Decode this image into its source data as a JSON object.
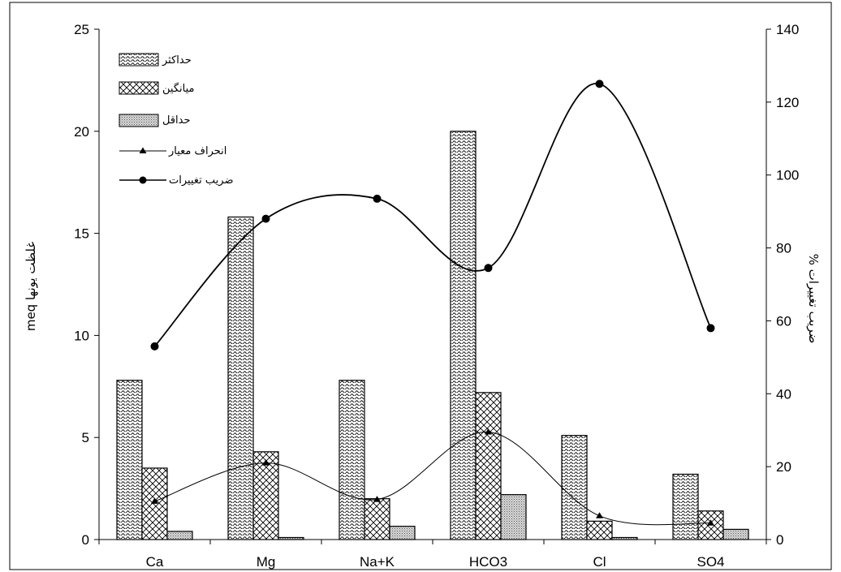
{
  "chart_data": {
    "type": "bar",
    "categories": [
      "Ca",
      "Mg",
      "Na+K",
      "HCO3",
      "Cl",
      "SO4"
    ],
    "series": [
      {
        "name": "حداکثر",
        "type": "bar",
        "axis": "left",
        "values": [
          7.8,
          15.8,
          7.8,
          20.0,
          5.1,
          3.2
        ]
      },
      {
        "name": "میانگین",
        "type": "bar",
        "axis": "left",
        "values": [
          3.5,
          4.3,
          2.0,
          7.2,
          0.9,
          1.4
        ]
      },
      {
        "name": "حداقل",
        "type": "bar",
        "axis": "left",
        "values": [
          0.4,
          0.1,
          0.65,
          2.2,
          0.1,
          0.5
        ]
      },
      {
        "name": "انحراف معیار",
        "type": "line",
        "axis": "right",
        "marker": "triangle",
        "values": [
          10.5,
          21,
          11,
          29.5,
          6.5,
          4.5
        ]
      },
      {
        "name": "ضریب تغییرات",
        "type": "line",
        "axis": "right",
        "marker": "circle",
        "values": [
          53,
          88,
          93.5,
          74.5,
          125,
          58
        ]
      }
    ],
    "y_left": {
      "label": "غلظت یونها meq",
      "min": 0,
      "max": 25,
      "ticks": [
        0,
        5,
        10,
        15,
        20,
        25
      ]
    },
    "y_right": {
      "label": "ضریب تغییرات %",
      "min": 0,
      "max": 140,
      "ticks": [
        0,
        20,
        40,
        60,
        80,
        100,
        120,
        140
      ]
    },
    "grid": false,
    "legend_position": "top-left"
  }
}
